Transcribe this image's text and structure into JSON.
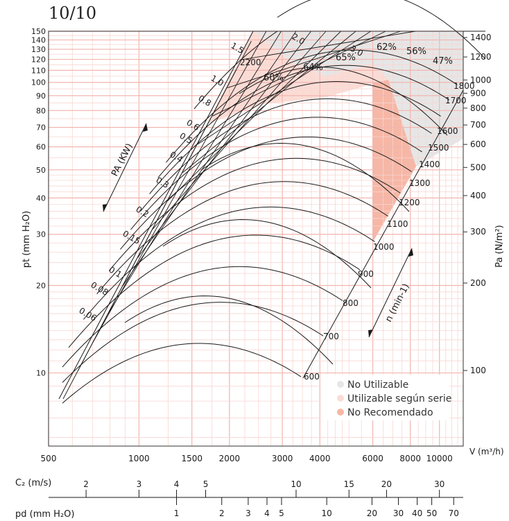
{
  "page_title": "10/10",
  "colors": {
    "grid_pink": "#f2b6b0",
    "grid_pink_light": "#f8d6d2",
    "zone_no_utilizable": "#e6e6e6",
    "zone_utilizable": "#fbdcd5",
    "zone_no_recomendado": "#f6b7a6",
    "ink": "#1a1a1a"
  },
  "chart_data": {
    "type": "line",
    "title": "",
    "xlabel": "V (m³/h)",
    "ylabel_left": "pt (mm H₂O)",
    "ylabel_right": "Pa (N/m²)",
    "x_scale": "log",
    "y_scale": "log",
    "xlim": [
      500,
      12000
    ],
    "ylim_mmH2O": [
      5.6,
      150
    ],
    "grid": true,
    "x_ticks": [
      "500",
      "1000",
      "1500",
      "2000",
      "3000",
      "4000",
      "6000",
      "8000",
      "10000"
    ],
    "x_tick_values": [
      500,
      1000,
      1500,
      2000,
      3000,
      4000,
      6000,
      8000,
      10000
    ],
    "y_left_ticks": [
      "10",
      "20",
      "30",
      "40",
      "50",
      "60",
      "70",
      "80",
      "90",
      "100",
      "110",
      "120",
      "130",
      "140",
      "150"
    ],
    "y_left_tick_values": [
      10,
      20,
      30,
      40,
      50,
      60,
      70,
      80,
      90,
      100,
      110,
      120,
      130,
      140,
      150
    ],
    "y_right_ticks": [
      "100",
      "200",
      "300",
      "400",
      "500",
      "600",
      "700",
      "800",
      "900",
      "1000",
      "1200",
      "1400"
    ],
    "y_right_tick_values_Pa": [
      100,
      200,
      300,
      400,
      500,
      600,
      700,
      800,
      900,
      1000,
      1200,
      1400
    ],
    "speed_axis_label": "n (min-1)",
    "speed_labels": [
      "600",
      "700",
      "800",
      "900",
      "1000",
      "1100",
      "1200",
      "1300",
      "1400",
      "1500",
      "1600",
      "1700",
      "1800",
      "2200"
    ],
    "speed_values": [
      600,
      700,
      800,
      900,
      1000,
      1100,
      1200,
      1300,
      1400,
      1500,
      1600,
      1700,
      1800,
      2200
    ],
    "power_axis_label": "PA (KW)",
    "power_labels": [
      "0.06",
      "0.08",
      "0.1",
      "0.15",
      "0.2",
      "0.3",
      "0.4",
      "0.5",
      "0.6",
      "0.8",
      "1.0",
      "1.5",
      "2.0",
      "3.0"
    ],
    "efficiency_labels": [
      "60%",
      "64%",
      "65%",
      "62%",
      "56%",
      "47%"
    ],
    "efficiency_values": [
      60,
      64,
      65,
      62,
      56,
      47
    ],
    "legend": [
      {
        "label": "No Utilizable"
      },
      {
        "label": "Utilizable según serie"
      },
      {
        "label": "No Recomendado"
      }
    ],
    "legend_placement": "bottom-right"
  },
  "scale_c2": {
    "label": "C₂ (m/s)",
    "ticks": [
      "2",
      "3",
      "4",
      "5",
      "10",
      "15",
      "20",
      "30"
    ],
    "tick_values": [
      2,
      3,
      4,
      5,
      10,
      15,
      20,
      30
    ]
  },
  "scale_pd": {
    "label": "pd (mm H₂O)",
    "ticks": [
      "1",
      "2",
      "3",
      "4",
      "5",
      "10",
      "20",
      "30",
      "40",
      "50",
      "70"
    ],
    "tick_values": [
      1,
      2,
      3,
      4,
      5,
      10,
      20,
      30,
      40,
      50,
      70
    ]
  }
}
